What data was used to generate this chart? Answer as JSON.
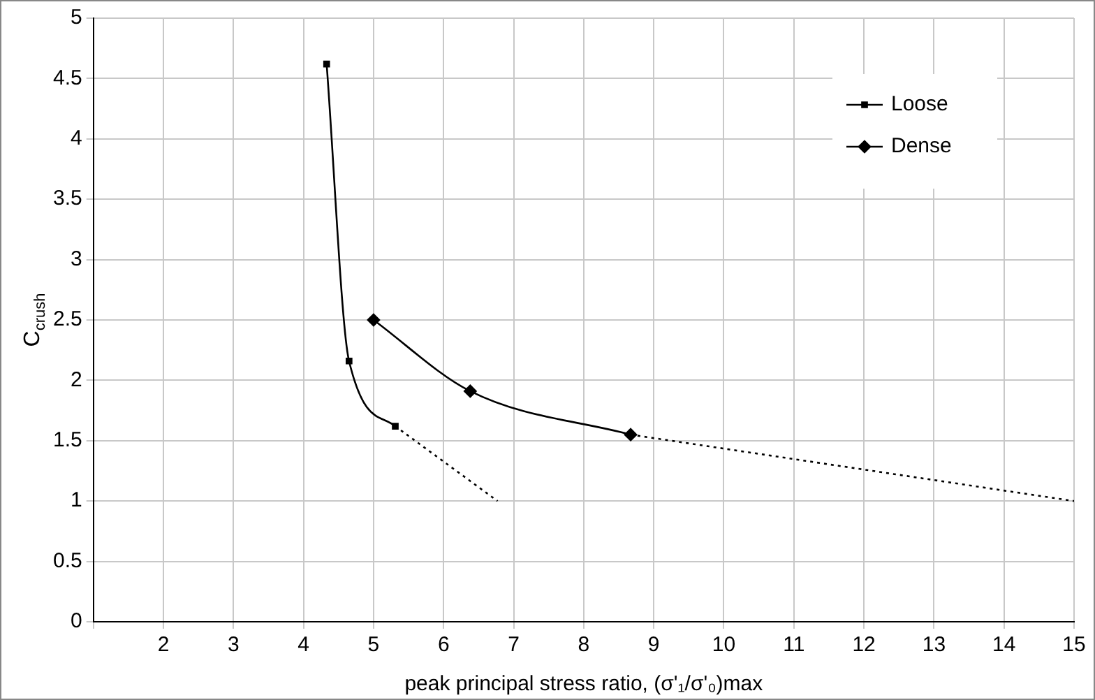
{
  "chart_data": {
    "type": "line",
    "xlabel": "peak principal stress ratio, (σ'₁/σ'₀)max",
    "ylabel": "C$_{crush}$",
    "xlim": [
      1,
      15
    ],
    "xticks": [
      {
        "value": 1,
        "label": null
      },
      2,
      3,
      4,
      5,
      6,
      7,
      8,
      9,
      10,
      11,
      12,
      13,
      14,
      15
    ],
    "ylim": [
      0,
      5
    ],
    "yticks": [
      0,
      0.5,
      1,
      1.5,
      2,
      2.5,
      3,
      3.5,
      4,
      4.5,
      5
    ],
    "grid": true,
    "legend": "top right",
    "series": [
      {
        "name": "Loose",
        "color": "#000000",
        "marker": "square",
        "line_style": "solid",
        "x": [
          4.33,
          4.65,
          5.31
        ],
        "values": [
          4.62,
          2.16,
          1.62
        ]
      },
      {
        "name": "Dense",
        "color": "#000000",
        "marker": "diamond",
        "line_style": "solid",
        "x": [
          5.0,
          6.38,
          8.67
        ],
        "values": [
          2.5,
          1.91,
          1.55
        ]
      },
      {
        "color": "#000000",
        "marker": "none",
        "line_style": "dotted",
        "x": [
          5.31,
          6.77
        ],
        "values": [
          1.62,
          1.0
        ]
      },
      {
        "color": "#000000",
        "marker": "none",
        "line_style": "dotted",
        "x": [
          8.67,
          15
        ],
        "values": [
          1.55,
          1.0
        ]
      }
    ]
  }
}
